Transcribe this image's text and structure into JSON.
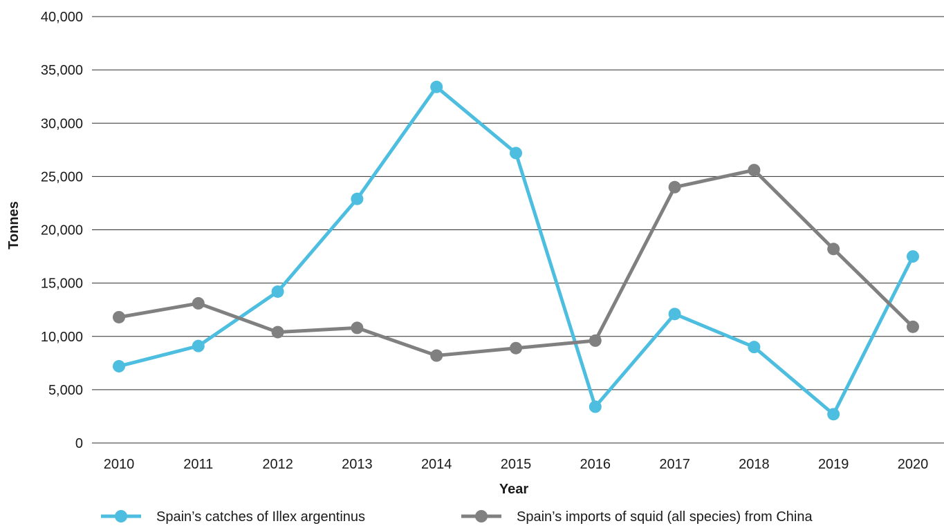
{
  "chart_data": {
    "type": "line",
    "title": "",
    "xlabel": "Year",
    "ylabel": "Tonnes",
    "categories": [
      "2010",
      "2011",
      "2012",
      "2013",
      "2014",
      "2015",
      "2016",
      "2017",
      "2018",
      "2019",
      "2020"
    ],
    "ylim": [
      0,
      40000
    ],
    "yticks": [
      0,
      5000,
      10000,
      15000,
      20000,
      25000,
      30000,
      35000,
      40000
    ],
    "ytick_labels": [
      "0",
      "5,000",
      "10,000",
      "15,000",
      "20,000",
      "25,000",
      "30,000",
      "35,000",
      "40,000"
    ],
    "grid": true,
    "legend_position": "bottom",
    "series": [
      {
        "name": "Spain’s catches of Illex argentinus",
        "color": "#4dbedf",
        "values": [
          7200,
          9100,
          14200,
          22900,
          33400,
          27200,
          3400,
          12100,
          9000,
          2700,
          17500
        ]
      },
      {
        "name": "Spain’s imports of squid (all species) from China",
        "color": "#808080",
        "values": [
          11800,
          13100,
          10400,
          10800,
          8200,
          8900,
          9600,
          24000,
          25600,
          18200,
          10900
        ]
      }
    ]
  }
}
